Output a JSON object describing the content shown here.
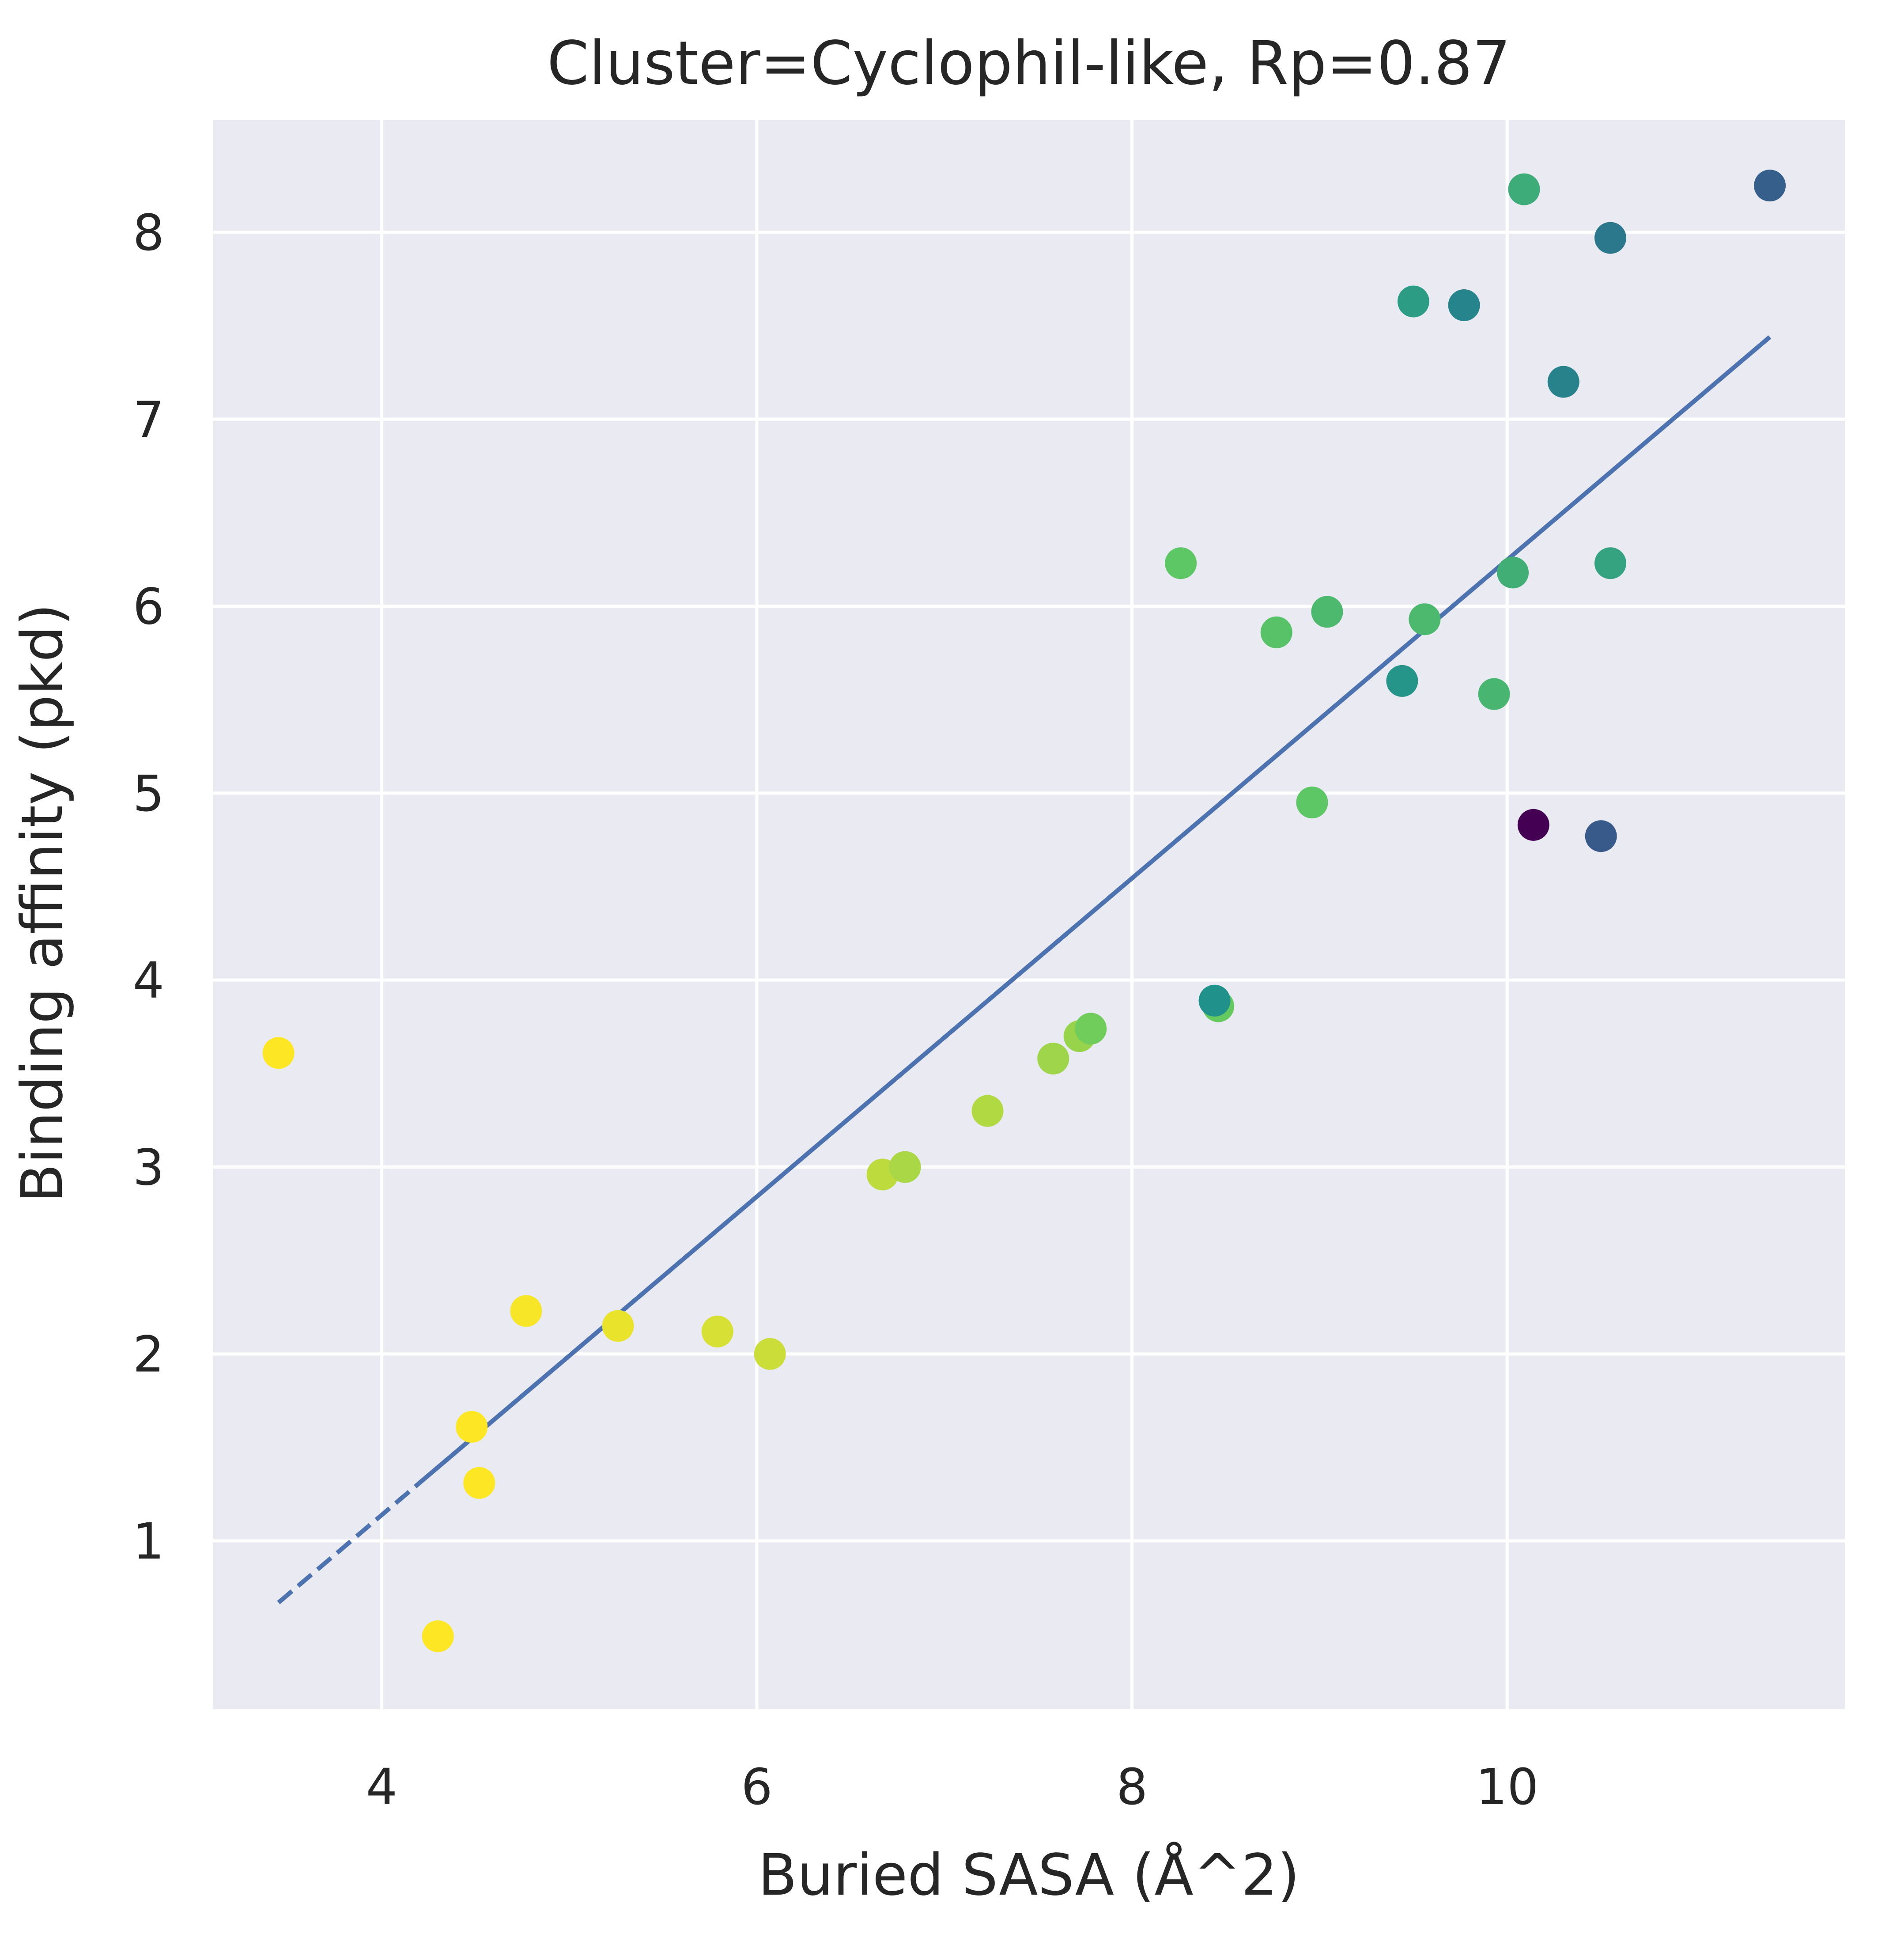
{
  "chart_data": {
    "type": "scatter",
    "title": "Cluster=Cyclophil-like, Rp=0.87",
    "xlabel": "Buried SASA (Å^2)",
    "ylabel": "Binding affinity (pkd)",
    "xlim": [
      3.1,
      11.8
    ],
    "ylim": [
      0.1,
      8.6
    ],
    "xticks": [
      4,
      6,
      8,
      10
    ],
    "yticks": [
      1,
      2,
      3,
      4,
      5,
      6,
      7,
      8
    ],
    "grid": true,
    "legend": "none",
    "colormap": "viridis",
    "background_color": "#eaeaf2",
    "grid_color": "#ffffff",
    "fit_line": {
      "color": "#4c72b0",
      "x": [
        3.45,
        11.4
      ],
      "y": [
        0.67,
        7.44
      ],
      "dashed_until_x": 4.2
    },
    "points": [
      {
        "x": 3.45,
        "y": 3.61,
        "c": 1.0
      },
      {
        "x": 4.3,
        "y": 0.49,
        "c": 1.0
      },
      {
        "x": 4.48,
        "y": 1.61,
        "c": 1.0
      },
      {
        "x": 4.52,
        "y": 1.31,
        "c": 1.0
      },
      {
        "x": 4.77,
        "y": 2.23,
        "c": 0.99
      },
      {
        "x": 5.26,
        "y": 2.15,
        "c": 0.97
      },
      {
        "x": 5.79,
        "y": 2.12,
        "c": 0.94
      },
      {
        "x": 6.07,
        "y": 2.0,
        "c": 0.92
      },
      {
        "x": 6.67,
        "y": 2.96,
        "c": 0.9
      },
      {
        "x": 6.79,
        "y": 3.0,
        "c": 0.87
      },
      {
        "x": 7.23,
        "y": 3.3,
        "c": 0.88
      },
      {
        "x": 7.58,
        "y": 3.58,
        "c": 0.85
      },
      {
        "x": 7.72,
        "y": 3.7,
        "c": 0.84
      },
      {
        "x": 7.78,
        "y": 3.74,
        "c": 0.78
      },
      {
        "x": 8.46,
        "y": 3.86,
        "c": 0.76
      },
      {
        "x": 8.44,
        "y": 3.89,
        "c": 0.5
      },
      {
        "x": 8.26,
        "y": 6.23,
        "c": 0.74
      },
      {
        "x": 8.77,
        "y": 5.86,
        "c": 0.72
      },
      {
        "x": 8.96,
        "y": 4.95,
        "c": 0.74
      },
      {
        "x": 9.04,
        "y": 5.97,
        "c": 0.68
      },
      {
        "x": 9.44,
        "y": 5.6,
        "c": 0.52
      },
      {
        "x": 9.5,
        "y": 7.63,
        "c": 0.55
      },
      {
        "x": 9.56,
        "y": 5.93,
        "c": 0.68
      },
      {
        "x": 9.77,
        "y": 7.61,
        "c": 0.45
      },
      {
        "x": 9.93,
        "y": 5.53,
        "c": 0.66
      },
      {
        "x": 10.03,
        "y": 6.18,
        "c": 0.63
      },
      {
        "x": 10.09,
        "y": 8.23,
        "c": 0.62
      },
      {
        "x": 10.14,
        "y": 4.83,
        "c": 0.0
      },
      {
        "x": 10.3,
        "y": 7.2,
        "c": 0.44
      },
      {
        "x": 10.5,
        "y": 4.77,
        "c": 0.28
      },
      {
        "x": 10.55,
        "y": 7.97,
        "c": 0.4
      },
      {
        "x": 10.55,
        "y": 6.23,
        "c": 0.58
      },
      {
        "x": 11.4,
        "y": 8.25,
        "c": 0.3
      }
    ]
  }
}
